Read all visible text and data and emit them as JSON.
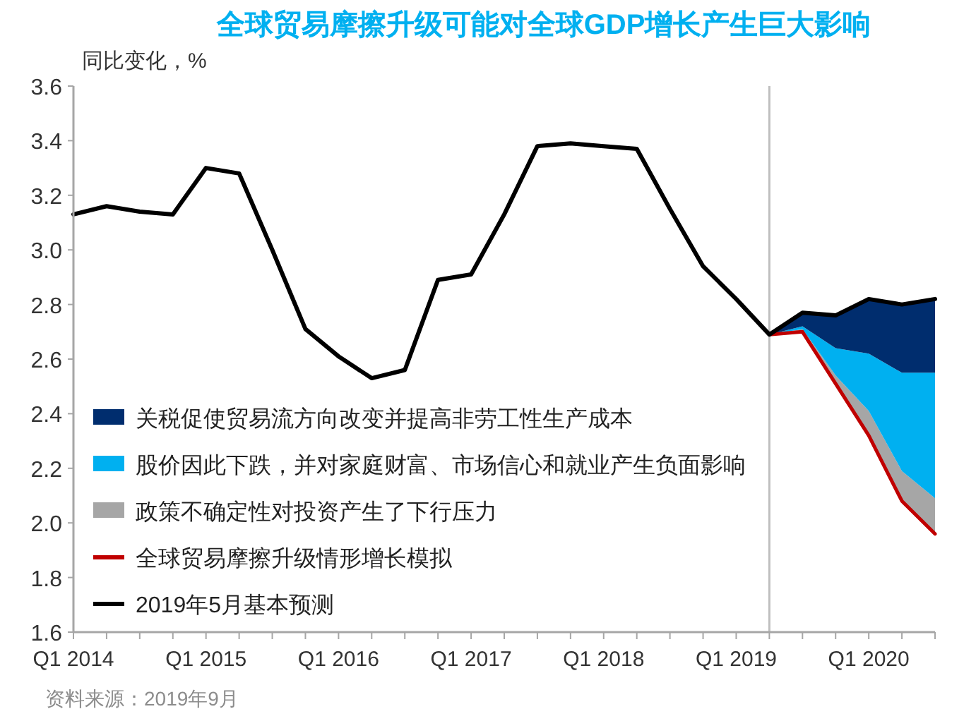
{
  "chart_data": {
    "type": "line",
    "title": "全球贸易摩擦升级可能对全球GDP增长产生巨大影响",
    "ylabel": "同比变化，%",
    "annotations": [
      "资料来源：2019年9月"
    ],
    "x": [
      "2014-01",
      "2014-04",
      "2014-07",
      "2014-10",
      "2015-01",
      "2015-04",
      "2015-07",
      "2015-10",
      "2016-01",
      "2016-04",
      "2016-07",
      "2016-10",
      "2017-01",
      "2017-04",
      "2017-07",
      "2017-10",
      "2018-01",
      "2018-04",
      "2018-07",
      "2018-10",
      "2019-01",
      "2019-04",
      "2019-07",
      "2019-10",
      "2020-01",
      "2020-04",
      "2020-07"
    ],
    "xlim": [
      "2014-01",
      "2020-07"
    ],
    "xticks": [
      {
        "value": "2014-01",
        "label": "Q1 2014"
      },
      {
        "value": "2014-04",
        "label": null
      },
      {
        "value": "2014-07",
        "label": null
      },
      {
        "value": "2014-10",
        "label": null
      },
      {
        "value": "2015-01",
        "label": "Q1 2015"
      },
      {
        "value": "2015-04",
        "label": null
      },
      {
        "value": "2015-07",
        "label": null
      },
      {
        "value": "2015-10",
        "label": null
      },
      {
        "value": "2016-01",
        "label": "Q1 2016"
      },
      {
        "value": "2016-04",
        "label": null
      },
      {
        "value": "2016-07",
        "label": null
      },
      {
        "value": "2016-10",
        "label": null
      },
      {
        "value": "2017-01",
        "label": "Q1 2017"
      },
      {
        "value": "2017-04",
        "label": null
      },
      {
        "value": "2017-07",
        "label": null
      },
      {
        "value": "2017-10",
        "label": null
      },
      {
        "value": "2018-01",
        "label": "Q1 2018"
      },
      {
        "value": "2018-04",
        "label": null
      },
      {
        "value": "2018-07",
        "label": null
      },
      {
        "value": "2018-10",
        "label": null
      },
      {
        "value": "2019-01",
        "label": "Q1 2019"
      },
      {
        "value": "2019-04",
        "label": null
      },
      {
        "value": "2019-07",
        "label": null
      },
      {
        "value": "2019-10",
        "label": null
      },
      {
        "value": "2020-01",
        "label": "Q1 2020"
      },
      {
        "value": "2020-04",
        "label": null
      },
      {
        "value": "2020-07",
        "label": null
      }
    ],
    "ylim": [
      1.6,
      3.6
    ],
    "yticks": [
      {
        "value": 1.6,
        "label": "1.6"
      },
      {
        "value": 1.8,
        "label": "1.8"
      },
      {
        "value": 2,
        "label": "2.0"
      },
      {
        "value": 2.2,
        "label": "2.2"
      },
      {
        "value": 2.4,
        "label": "2.4"
      },
      {
        "value": 2.6,
        "label": "2.6"
      },
      {
        "value": 2.8,
        "label": "2.8"
      },
      {
        "value": 3,
        "label": "3.0"
      },
      {
        "value": 3.2,
        "label": "3.2"
      },
      {
        "value": 3.4,
        "label": "3.4"
      },
      {
        "value": 3.6,
        "label": "3.6"
      }
    ],
    "legend": "bottom left",
    "ref_lines": [
      {
        "axis": "x",
        "value": "2019-04",
        "color": "#bfbfbf"
      }
    ],
    "series": [
      {
        "name": "全球贸易摩擦升级情形增长模拟",
        "type": "line",
        "color": "#c00000",
        "x": [
          "2019-04",
          "2019-07",
          "2019-10",
          "2020-01",
          "2020-04",
          "2020-07"
        ],
        "values": [
          2.69,
          2.7,
          2.51,
          2.32,
          2.08,
          1.96
        ]
      },
      {
        "name": "政策不确定性对投资产生了下行压力",
        "type": "area",
        "color": "#a6a6a6",
        "x": [
          "2019-04",
          "2019-07",
          "2019-10",
          "2020-01",
          "2020-04",
          "2020-07"
        ],
        "values": [
          2.69,
          2.71,
          2.54,
          2.41,
          2.19,
          2.09
        ]
      },
      {
        "name": "股价因此下跌，并对家庭财富、市场信心和就业产生负面影响",
        "type": "area",
        "color": "#00b0f0",
        "x": [
          "2019-04",
          "2019-07",
          "2019-10",
          "2020-01",
          "2020-04",
          "2020-07"
        ],
        "values": [
          2.69,
          2.72,
          2.64,
          2.62,
          2.55,
          2.55
        ]
      },
      {
        "name": "关税促使贸易流方向改变并提高非劳工性生产成本",
        "type": "area",
        "color": "#002d6e",
        "x": [
          "2019-04",
          "2019-07",
          "2019-10",
          "2020-01",
          "2020-04",
          "2020-07"
        ],
        "values": [
          2.69,
          2.77,
          2.76,
          2.82,
          2.8,
          2.82
        ]
      },
      {
        "name": "2019年5月基本预测",
        "type": "line",
        "color": "#000000",
        "values": [
          3.13,
          3.16,
          3.14,
          3.13,
          3.3,
          3.28,
          3.0,
          2.71,
          2.61,
          2.53,
          2.56,
          2.89,
          2.91,
          3.13,
          3.38,
          3.39,
          3.38,
          3.37,
          3.15,
          2.94,
          2.82,
          2.69,
          2.77,
          2.76,
          2.82,
          2.8,
          2.82
        ]
      }
    ]
  }
}
